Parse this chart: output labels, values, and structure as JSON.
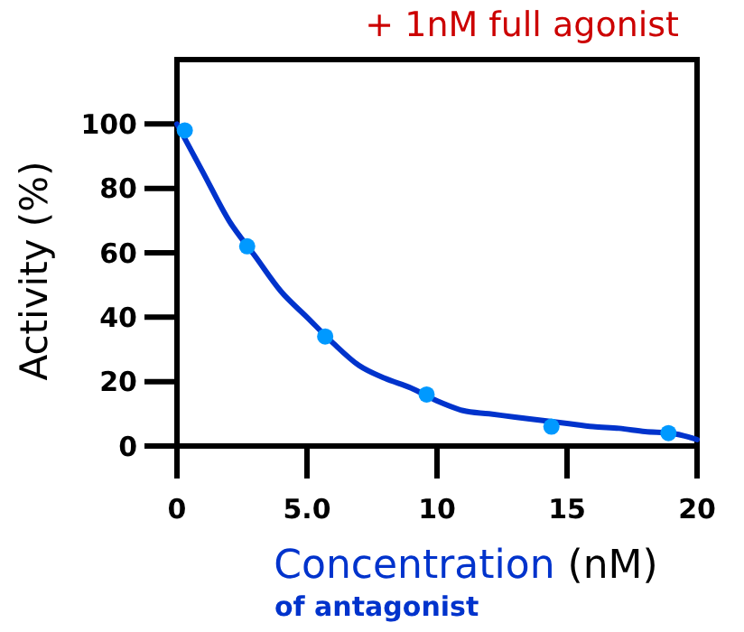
{
  "chart_data": {
    "type": "scatter",
    "title": "+ 1nM full agonist",
    "xlabel": "Concentration (nM)",
    "ylabel": "Activity (%)",
    "annotations": [
      "of antagonist"
    ],
    "xlim": [
      0,
      20
    ],
    "ylim": [
      0,
      120
    ],
    "xticks": [
      0,
      {
        "value": 5,
        "label": "5.0"
      },
      10,
      15,
      20
    ],
    "yticks": [
      0,
      20,
      40,
      60,
      80,
      100
    ],
    "grid": false,
    "series": [
      {
        "type": "line",
        "color": "#0033cc",
        "marker": "none",
        "line_style": "solid",
        "x": [
          0,
          1,
          2,
          3,
          4,
          5,
          6,
          7,
          8,
          9,
          10,
          11,
          12,
          13,
          14,
          15,
          16,
          17,
          18,
          19,
          20
        ],
        "values": [
          100,
          85,
          70,
          59,
          48,
          40,
          32,
          25,
          21,
          18,
          14,
          11,
          10,
          9,
          8,
          7,
          6,
          5.5,
          4.5,
          4,
          2
        ]
      },
      {
        "color": "#0099ff",
        "marker": "circle",
        "x": [
          0.3,
          2.7,
          5.7,
          9.6,
          14.4,
          18.9
        ],
        "values": [
          98,
          62,
          34,
          16,
          6,
          4
        ]
      }
    ]
  }
}
